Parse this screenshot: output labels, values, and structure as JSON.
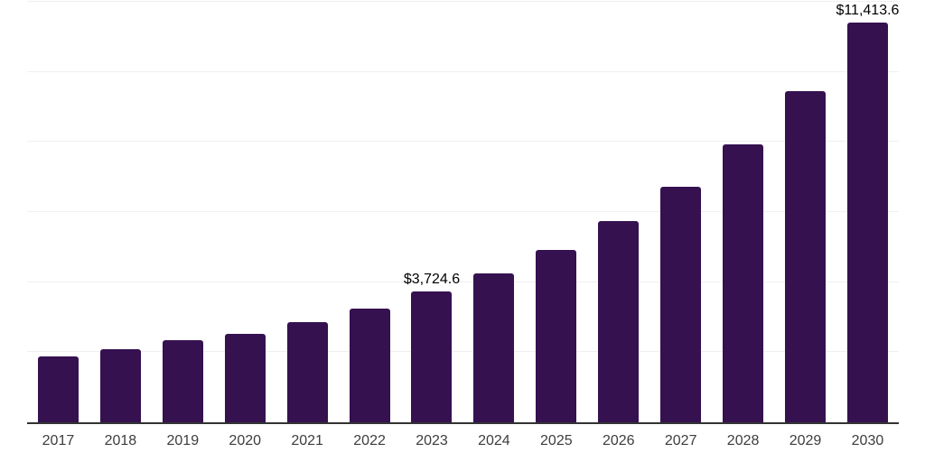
{
  "chart_data": {
    "type": "bar",
    "title": "",
    "xlabel": "",
    "ylabel": "",
    "categories": [
      "2017",
      "2018",
      "2019",
      "2020",
      "2021",
      "2022",
      "2023",
      "2024",
      "2025",
      "2026",
      "2027",
      "2028",
      "2029",
      "2030"
    ],
    "values": [
      1890,
      2090,
      2350,
      2530,
      2860,
      3240,
      3724.6,
      4260,
      4920,
      5740,
      6710,
      7930,
      9460,
      11413.6
    ],
    "value_labels": {
      "2023": "$3,724.6",
      "2030": "$11,413.6"
    },
    "ylim": [
      0,
      12000
    ],
    "gridline_interval": 2000,
    "grid": true,
    "y_axis_tick_labels_visible": false,
    "legend_position": "none",
    "colors": {
      "bar": "#351150",
      "gridline": "#f0f0f0",
      "axis_line": "#333333",
      "value_label_text": "#000000",
      "x_tick_text": "#3d3d3d",
      "background": "#ffffff"
    }
  }
}
